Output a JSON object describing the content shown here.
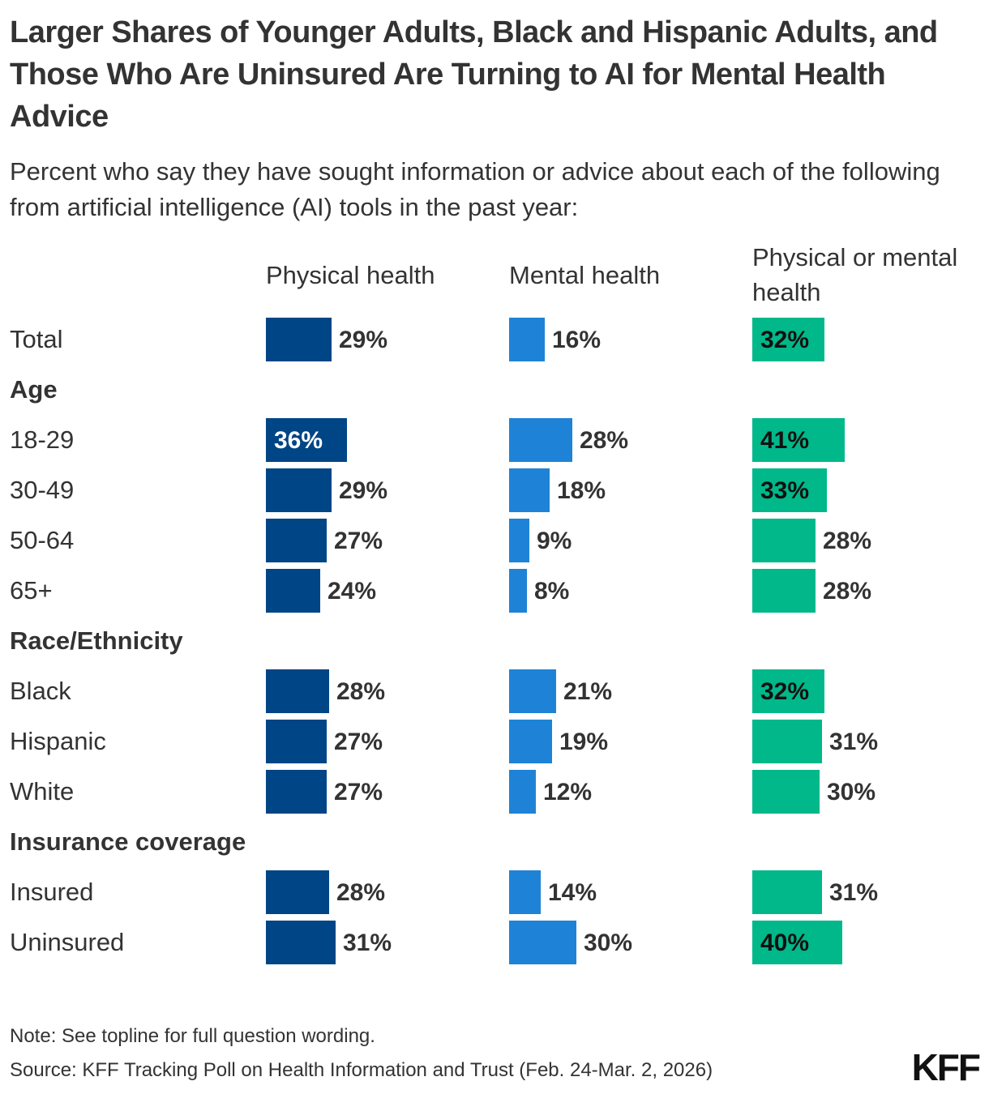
{
  "title": "Larger Shares of Younger Adults, Black and Hispanic Adults, and Those Who Are Uninsured Are Turning to AI for Mental Health Advice",
  "subtitle": "Percent who say they have sought information or advice about each of the following from artificial intelligence (AI) tools in the past year:",
  "note": "Note: See topline for full question wording.",
  "source": "Source: KFF Tracking Poll on Health Information and Trust (Feb. 24-Mar. 2, 2026)",
  "logo": "KFF",
  "colors": {
    "physical": "#004585",
    "mental": "#1e83d6",
    "either": "#00b88a"
  },
  "chart_data": {
    "type": "bar",
    "orientation": "horizontal",
    "title": "Larger Shares of Younger Adults, Black and Hispanic Adults, and Those Who Are Uninsured Are Turning to AI for Mental Health Advice",
    "series": [
      {
        "name": "Physical health",
        "color": "#004585"
      },
      {
        "name": "Mental health",
        "color": "#1e83d6"
      },
      {
        "name": "Physical or mental health",
        "color": "#00b88a"
      }
    ],
    "rows": [
      {
        "label": "Total",
        "kind": "data",
        "values": [
          29,
          16,
          32
        ],
        "labels": [
          "29%",
          "16%",
          "32%"
        ]
      },
      {
        "label": "Age",
        "kind": "group"
      },
      {
        "label": "18-29",
        "kind": "data",
        "values": [
          36,
          28,
          41
        ],
        "labels": [
          "36%",
          "28%",
          "41%"
        ]
      },
      {
        "label": "30-49",
        "kind": "data",
        "values": [
          29,
          18,
          33
        ],
        "labels": [
          "29%",
          "18%",
          "33%"
        ]
      },
      {
        "label": "50-64",
        "kind": "data",
        "values": [
          27,
          9,
          28
        ],
        "labels": [
          "27%",
          "9%",
          "28%"
        ]
      },
      {
        "label": "65+",
        "kind": "data",
        "values": [
          24,
          8,
          28
        ],
        "labels": [
          "24%",
          "8%",
          "28%"
        ]
      },
      {
        "label": "Race/Ethnicity",
        "kind": "group"
      },
      {
        "label": "Black",
        "kind": "data",
        "values": [
          28,
          21,
          32
        ],
        "labels": [
          "28%",
          "21%",
          "32%"
        ]
      },
      {
        "label": "Hispanic",
        "kind": "data",
        "values": [
          27,
          19,
          31
        ],
        "labels": [
          "27%",
          "19%",
          "31%"
        ]
      },
      {
        "label": "White",
        "kind": "data",
        "values": [
          27,
          12,
          30
        ],
        "labels": [
          "27%",
          "12%",
          "30%"
        ]
      },
      {
        "label": "Insurance coverage",
        "kind": "group"
      },
      {
        "label": "Insured",
        "kind": "data",
        "values": [
          28,
          14,
          31
        ],
        "labels": [
          "28%",
          "14%",
          "31%"
        ]
      },
      {
        "label": "Uninsured",
        "kind": "data",
        "values": [
          31,
          30,
          40
        ],
        "labels": [
          "31%",
          "30%",
          "40%"
        ]
      }
    ],
    "highlighted": [
      [
        false,
        false,
        true
      ],
      null,
      [
        true,
        false,
        true
      ],
      [
        false,
        false,
        true
      ],
      [
        false,
        false,
        false
      ],
      [
        false,
        false,
        false
      ],
      null,
      [
        false,
        false,
        true
      ],
      [
        false,
        false,
        false
      ],
      [
        false,
        false,
        false
      ],
      null,
      [
        false,
        false,
        false
      ],
      [
        false,
        false,
        true
      ]
    ]
  }
}
